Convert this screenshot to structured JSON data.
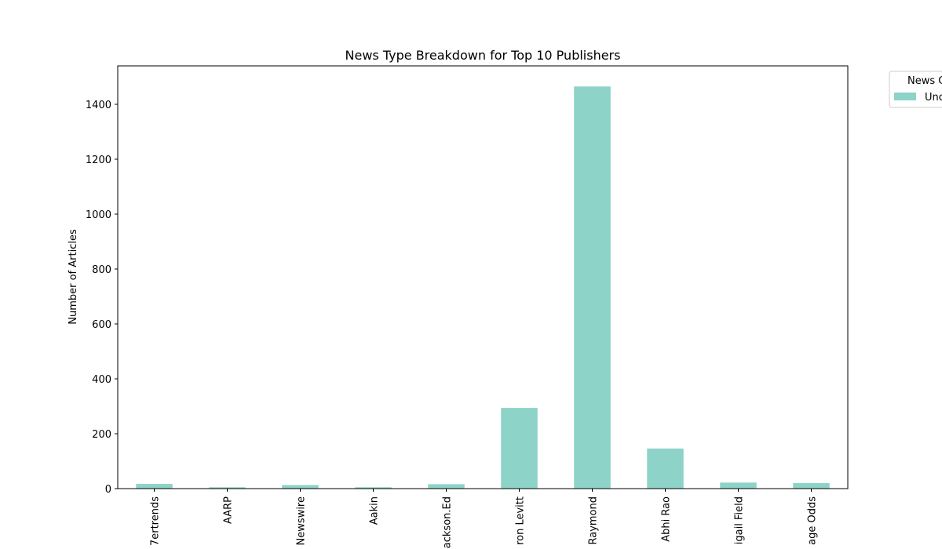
{
  "chart_data": {
    "type": "bar",
    "title": "News Type Breakdown for Top 10 Publishers",
    "xlabel": "",
    "ylabel": "Number of Articles",
    "categories": [
      "7ertrends",
      "AARP",
      "Newswire",
      "Aakin",
      "ackson.Ed",
      "ron Levitt",
      "Raymond",
      "Abhi Rao",
      "igail Field",
      "age Odds"
    ],
    "series": [
      {
        "name": "Unc",
        "color": "#8dd3c7",
        "values": [
          17,
          5,
          13,
          5,
          16,
          294,
          1465,
          146,
          22,
          20
        ]
      }
    ],
    "ylim": [
      0,
      1540
    ],
    "yticks": [
      0,
      200,
      400,
      600,
      800,
      1000,
      1200,
      1400
    ],
    "grid": false,
    "legend": {
      "title": "News C",
      "placement": "top-right outside"
    }
  }
}
